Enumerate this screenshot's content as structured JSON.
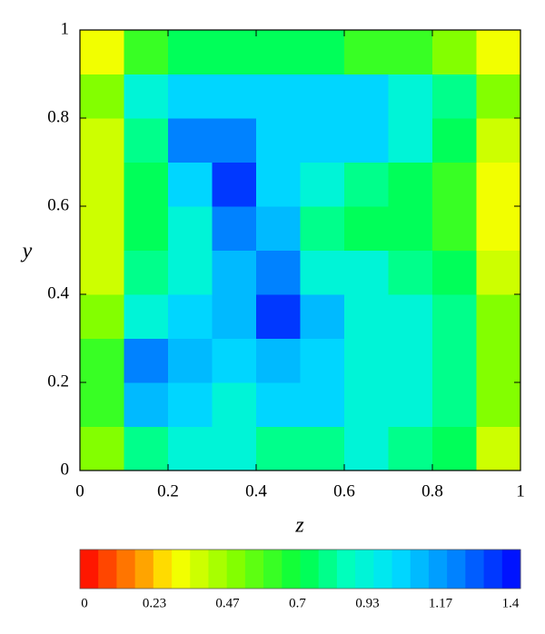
{
  "chart_data": {
    "type": "heatmap",
    "xlabel": "z",
    "ylabel": "y",
    "xlim": [
      0,
      1
    ],
    "ylim": [
      0,
      1
    ],
    "xticks": [
      0,
      0.2,
      0.4,
      0.6,
      0.8,
      1
    ],
    "yticks": [
      0,
      0.2,
      0.4,
      0.6,
      0.8,
      1
    ],
    "z": [
      [
        0.5,
        0.8,
        0.9,
        0.9,
        0.8,
        0.8,
        0.9,
        0.8,
        0.7,
        0.4
      ],
      [
        0.6,
        1.1,
        1.0,
        0.9,
        1.0,
        1.0,
        0.9,
        0.9,
        0.8,
        0.5
      ],
      [
        0.6,
        1.2,
        1.1,
        1.0,
        1.1,
        1.0,
        0.9,
        0.9,
        0.8,
        0.5
      ],
      [
        0.5,
        0.9,
        1.0,
        1.1,
        1.3,
        1.1,
        0.9,
        0.9,
        0.8,
        0.5
      ],
      [
        0.4,
        0.8,
        0.9,
        1.1,
        1.2,
        0.9,
        0.9,
        0.8,
        0.7,
        0.4
      ],
      [
        0.4,
        0.7,
        0.9,
        1.2,
        1.1,
        0.8,
        0.7,
        0.7,
        0.6,
        0.3
      ],
      [
        0.4,
        0.7,
        1.0,
        1.3,
        1.0,
        0.9,
        0.8,
        0.7,
        0.6,
        0.3
      ],
      [
        0.4,
        0.8,
        1.2,
        1.2,
        1.0,
        1.0,
        1.0,
        0.9,
        0.7,
        0.4
      ],
      [
        0.5,
        0.9,
        1.0,
        1.0,
        1.0,
        1.0,
        1.0,
        0.9,
        0.8,
        0.5
      ],
      [
        0.3,
        0.6,
        0.7,
        0.7,
        0.7,
        0.7,
        0.6,
        0.6,
        0.5,
        0.3
      ]
    ],
    "colorbar": {
      "lim": [
        0,
        1.4
      ],
      "ticks": [
        0,
        0.23,
        0.47,
        0.7,
        0.93,
        1.17,
        1.4
      ],
      "levels": 24
    },
    "colorscale": [
      [
        0,
        "#ff0000"
      ],
      [
        0.2,
        "#ffa000"
      ],
      [
        0.3,
        "#ffff00"
      ],
      [
        0.5,
        "#80ff00"
      ],
      [
        0.7,
        "#00ff40"
      ],
      [
        0.85,
        "#00ffc0"
      ],
      [
        1.0,
        "#00e0ff"
      ],
      [
        1.2,
        "#0080ff"
      ],
      [
        1.4,
        "#0000ff"
      ]
    ]
  }
}
